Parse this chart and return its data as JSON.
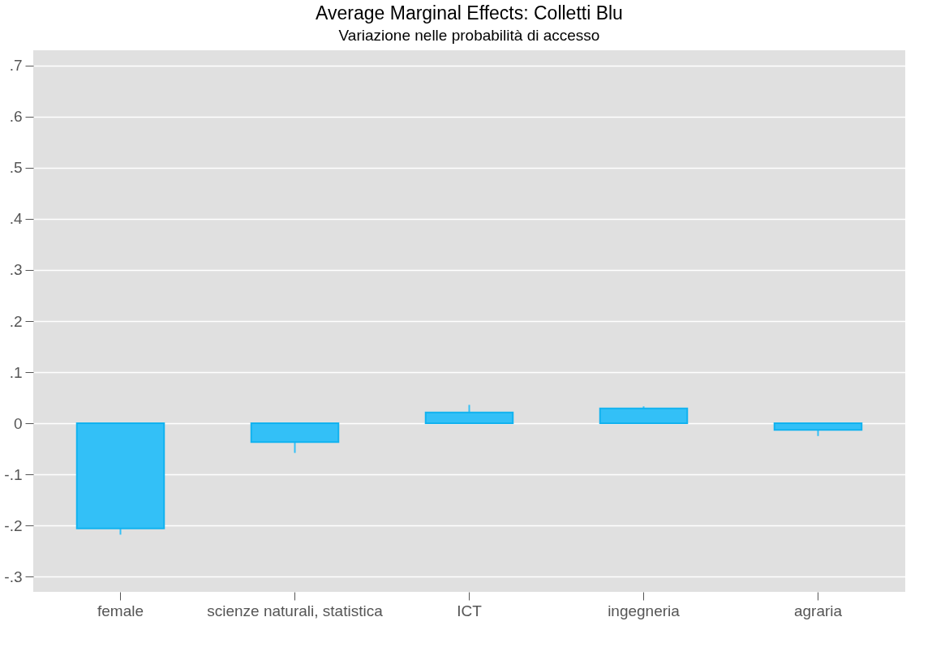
{
  "chart_data": {
    "type": "bar",
    "title": "Average Marginal Effects: Colletti Blu",
    "subtitle": "Variazione nelle probabilità di accesso",
    "categories": [
      "female",
      "scienze naturali, statistica",
      "ICT",
      "ingegneria",
      "agraria"
    ],
    "values": [
      -0.206,
      -0.037,
      0.021,
      0.029,
      -0.013
    ],
    "errors": [
      0.012,
      0.021,
      0.015,
      0.004,
      0.012
    ],
    "color": "#33c0f7",
    "ylim": [
      -0.33,
      0.73
    ],
    "yticks": [
      {
        "value": -0.3,
        "label": "-.3"
      },
      {
        "value": -0.2,
        "label": "-.2"
      },
      {
        "value": -0.1,
        "label": "-.1"
      },
      0,
      {
        "value": 0.1,
        "label": ".1"
      },
      {
        "value": 0.2,
        "label": ".2"
      },
      {
        "value": 0.3,
        "label": ".3"
      },
      {
        "value": 0.4,
        "label": ".4"
      },
      {
        "value": 0.5,
        "label": ".5"
      },
      {
        "value": 0.6,
        "label": ".6"
      },
      {
        "value": 0.7,
        "label": ".7"
      }
    ],
    "grid": "y"
  }
}
